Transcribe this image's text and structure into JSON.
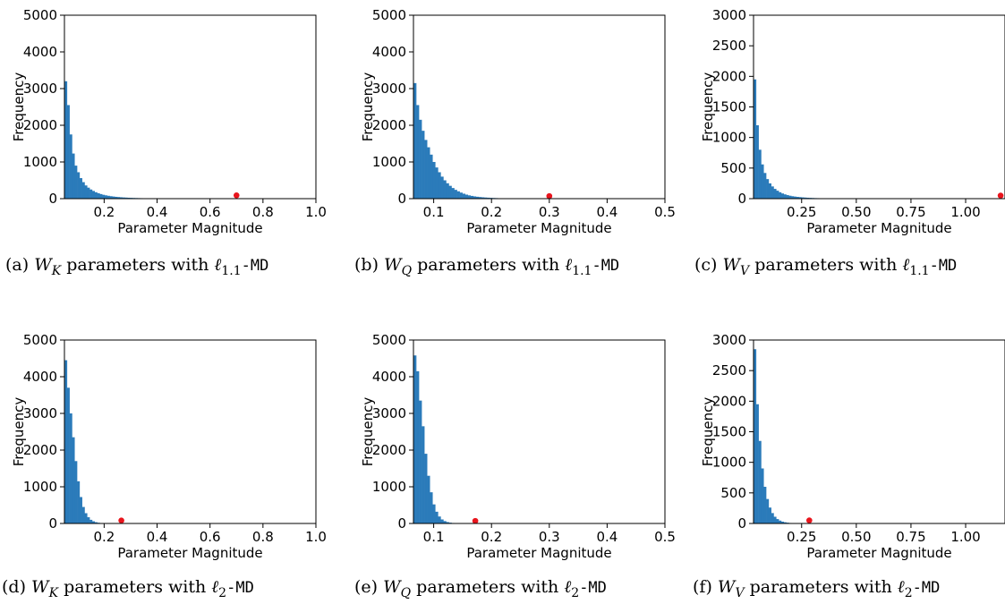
{
  "colors": {
    "bar": "#2b7bba",
    "marker": "#e8141c",
    "axis": "#000000"
  },
  "chart_data": [
    {
      "type": "bar",
      "subtype": "histogram",
      "xlabel": "Parameter Magnitude",
      "ylabel": "Frequency",
      "xlim": [
        0.05,
        1.0
      ],
      "ylim": [
        0,
        5000
      ],
      "xticks": [
        0.2,
        0.4,
        0.6,
        0.8,
        1.0
      ],
      "xtick_labels": [
        "0.2",
        "0.4",
        "0.6",
        "0.8",
        "1.0"
      ],
      "yticks": [
        0,
        1000,
        2000,
        3000,
        4000,
        5000
      ],
      "ytick_labels": [
        "0",
        "1000",
        "2000",
        "3000",
        "4000",
        "5000"
      ],
      "bins": {
        "start": 0.05,
        "width": 0.0095
      },
      "counts": [
        3200,
        2550,
        1750,
        1230,
        900,
        720,
        560,
        450,
        360,
        300,
        250,
        210,
        175,
        148,
        125,
        105,
        90,
        78,
        67,
        58,
        50,
        44,
        38,
        33,
        29,
        25,
        22,
        19,
        17,
        15,
        13,
        11,
        10,
        9,
        8,
        7,
        6,
        5,
        5,
        4,
        3,
        3,
        3,
        2,
        2,
        2
      ],
      "outlier": {
        "x": 0.7,
        "y": 90
      },
      "caption": {
        "label": "(a)",
        "matrix": "W",
        "sub": "K",
        "text": " parameters with ",
        "norm": "ℓ",
        "norm_sub": "1.1",
        "method": "-MD"
      }
    },
    {
      "type": "bar",
      "subtype": "histogram",
      "xlabel": "Parameter Magnitude",
      "ylabel": "Frequency",
      "xlim": [
        0.065,
        0.5
      ],
      "ylim": [
        0,
        5000
      ],
      "xticks": [
        0.1,
        0.2,
        0.3,
        0.4,
        0.5
      ],
      "xtick_labels": [
        "0.1",
        "0.2",
        "0.3",
        "0.4",
        "0.5"
      ],
      "yticks": [
        0,
        1000,
        2000,
        3000,
        4000,
        5000
      ],
      "ytick_labels": [
        "0",
        "1000",
        "2000",
        "3000",
        "4000",
        "5000"
      ],
      "bins": {
        "start": 0.065,
        "width": 0.0047
      },
      "counts": [
        3150,
        2550,
        2150,
        1850,
        1600,
        1400,
        1200,
        1000,
        850,
        720,
        600,
        500,
        420,
        350,
        290,
        240,
        200,
        165,
        135,
        110,
        90,
        75,
        62,
        52,
        44,
        37,
        31,
        26,
        22,
        18,
        15,
        12,
        10,
        8,
        7,
        6,
        5,
        4,
        3,
        3,
        2,
        2
      ],
      "outlier": {
        "x": 0.3,
        "y": 70
      },
      "caption": {
        "label": "(b)",
        "matrix": "W",
        "sub": "Q",
        "text": " parameters with ",
        "norm": "ℓ",
        "norm_sub": "1.1",
        "method": "-MD"
      }
    },
    {
      "type": "bar",
      "subtype": "histogram",
      "xlabel": "Parameter Magnitude",
      "ylabel": "Frequency",
      "xlim": [
        0.03,
        1.18
      ],
      "ylim": [
        0,
        3000
      ],
      "xticks": [
        0.25,
        0.5,
        0.75,
        1.0
      ],
      "xtick_labels": [
        "0.25",
        "0.50",
        "0.75",
        "1.00"
      ],
      "yticks": [
        0,
        500,
        1000,
        1500,
        2000,
        2500,
        3000
      ],
      "ytick_labels": [
        "0",
        "500",
        "1000",
        "1500",
        "2000",
        "2500",
        "3000"
      ],
      "bins": {
        "start": 0.03,
        "width": 0.0115
      },
      "counts": [
        1950,
        1200,
        800,
        560,
        420,
        320,
        250,
        200,
        160,
        130,
        105,
        85,
        70,
        58,
        48,
        40,
        34,
        29,
        25,
        21,
        18,
        15,
        13,
        11,
        9,
        8,
        7,
        6,
        5,
        4,
        4,
        3,
        3,
        2,
        2,
        2,
        2
      ],
      "outlier": {
        "x": 1.16,
        "y": 50
      },
      "caption": {
        "label": "(c)",
        "matrix": "W",
        "sub": "V",
        "text": " parameters with ",
        "norm": "ℓ",
        "norm_sub": "1.1",
        "method": "-MD"
      }
    },
    {
      "type": "bar",
      "subtype": "histogram",
      "xlabel": "Parameter Magnitude",
      "ylabel": "Frequency",
      "xlim": [
        0.05,
        1.0
      ],
      "ylim": [
        0,
        5000
      ],
      "xticks": [
        0.2,
        0.4,
        0.6,
        0.8,
        1.0
      ],
      "xtick_labels": [
        "0.2",
        "0.4",
        "0.6",
        "0.8",
        "1.0"
      ],
      "yticks": [
        0,
        1000,
        2000,
        3000,
        4000,
        5000
      ],
      "ytick_labels": [
        "0",
        "1000",
        "2000",
        "3000",
        "4000",
        "5000"
      ],
      "bins": {
        "start": 0.05,
        "width": 0.0095
      },
      "counts": [
        4450,
        3700,
        3000,
        2350,
        1700,
        1150,
        720,
        450,
        280,
        170,
        100,
        60,
        35,
        20,
        12,
        7,
        4,
        3,
        2
      ],
      "outlier": {
        "x": 0.265,
        "y": 80
      },
      "caption": {
        "label": "(d)",
        "matrix": "W",
        "sub": "K",
        "text": " parameters with ",
        "norm": "ℓ",
        "norm_sub": "2",
        "method": "-MD"
      }
    },
    {
      "type": "bar",
      "subtype": "histogram",
      "xlabel": "Parameter Magnitude",
      "ylabel": "Frequency",
      "xlim": [
        0.065,
        0.5
      ],
      "ylim": [
        0,
        5000
      ],
      "xticks": [
        0.1,
        0.2,
        0.3,
        0.4,
        0.5
      ],
      "xtick_labels": [
        "0.1",
        "0.2",
        "0.3",
        "0.4",
        "0.5"
      ],
      "bins": {
        "start": 0.065,
        "width": 0.0047
      },
      "yticks": [
        0,
        1000,
        2000,
        3000,
        4000,
        5000
      ],
      "ytick_labels": [
        "0",
        "1000",
        "2000",
        "3000",
        "4000",
        "5000"
      ],
      "counts": [
        4580,
        4150,
        3350,
        2650,
        1900,
        1300,
        850,
        520,
        320,
        190,
        110,
        65,
        38,
        22,
        13,
        8,
        5,
        3,
        2
      ],
      "outlier": {
        "x": 0.172,
        "y": 70
      },
      "caption": {
        "label": "(e)",
        "matrix": "W",
        "sub": "Q",
        "text": " parameters with ",
        "norm": "ℓ",
        "norm_sub": "2",
        "method": "-MD"
      }
    },
    {
      "type": "bar",
      "subtype": "histogram",
      "xlabel": "Parameter Magnitude",
      "ylabel": "Frequency",
      "xlim": [
        0.03,
        1.18
      ],
      "ylim": [
        0,
        3000
      ],
      "xticks": [
        0.25,
        0.5,
        0.75,
        1.0
      ],
      "xtick_labels": [
        "0.25",
        "0.50",
        "0.75",
        "1.00"
      ],
      "yticks": [
        0,
        500,
        1000,
        1500,
        2000,
        2500,
        3000
      ],
      "ytick_labels": [
        "0",
        "500",
        "1000",
        "1500",
        "2000",
        "2500",
        "3000"
      ],
      "bins": {
        "start": 0.03,
        "width": 0.0115
      },
      "counts": [
        2850,
        1950,
        1350,
        900,
        600,
        400,
        260,
        170,
        110,
        72,
        47,
        30,
        20,
        13,
        8,
        5,
        3,
        2
      ],
      "outlier": {
        "x": 0.285,
        "y": 50
      },
      "caption": {
        "label": "(f)",
        "matrix": "W",
        "sub": "V",
        "text": " parameters with ",
        "norm": "ℓ",
        "norm_sub": "2",
        "method": "-MD"
      }
    }
  ]
}
